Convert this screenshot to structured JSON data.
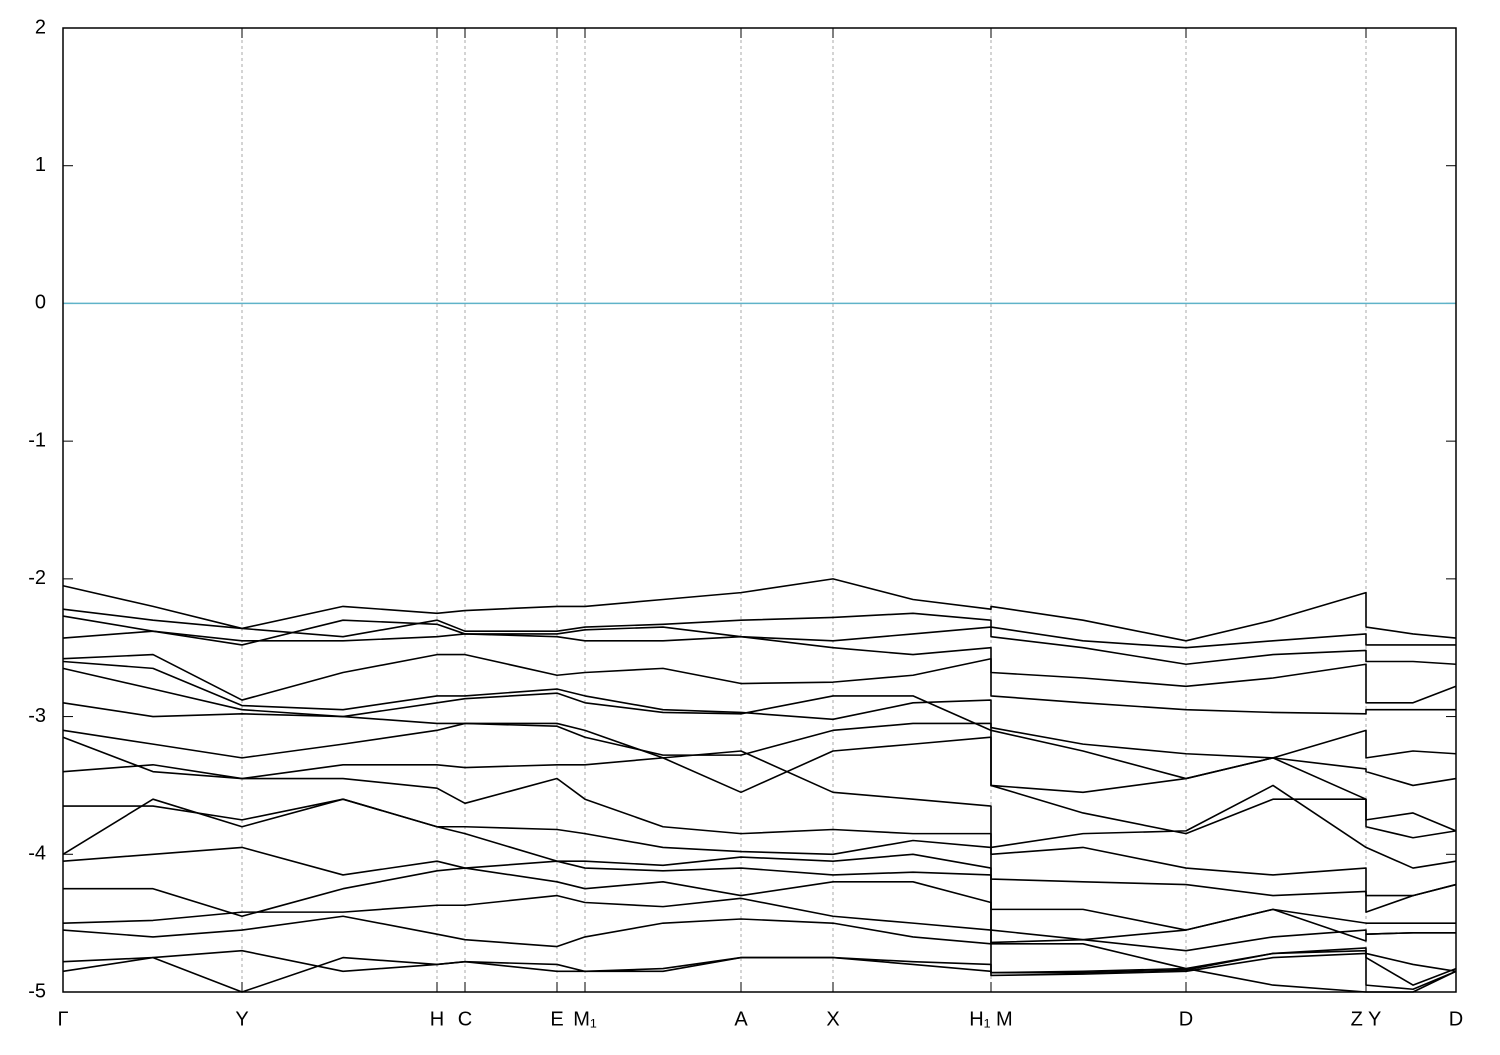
{
  "chart_data": {
    "type": "line",
    "xlim": [
      0,
      13.93
    ],
    "ylim": [
      -5,
      2
    ],
    "yticks": [
      -5,
      -4,
      -3,
      -2,
      -1,
      0,
      1,
      2
    ],
    "xticks": [
      {
        "value": 0,
        "label": "Γ"
      },
      {
        "value": 1.79,
        "label": "Y"
      },
      {
        "value": 3.74,
        "label": "H"
      },
      {
        "value": 4.02,
        "label": "C"
      },
      {
        "value": 4.94,
        "label": "E"
      },
      {
        "value": 5.22,
        "label": "M₁"
      },
      {
        "value": 6.78,
        "label": "A"
      },
      {
        "value": 7.7,
        "label": "X"
      },
      {
        "value": 9.28,
        "label": "H₁ M"
      },
      {
        "value": 11.23,
        "label": "D"
      },
      {
        "value": 13.03,
        "label": "Z Y"
      },
      {
        "value": 13.93,
        "label": "D"
      }
    ],
    "grid": true,
    "line_color": "#000000",
    "zero_line": {
      "value": 0,
      "color": "#5fb3c9"
    },
    "x": [
      0,
      0.9,
      1.79,
      2.8,
      3.74,
      4.02,
      4.94,
      5.22,
      6.0,
      6.78,
      7.7,
      8.5,
      9.28,
      9.28,
      10.2,
      11.23,
      12.1,
      13.03,
      13.03,
      13.5,
      13.93
    ],
    "series": [
      {
        "values": [
          -2.05,
          -2.2,
          -2.36,
          -2.2,
          -2.25,
          -2.23,
          -2.2,
          -2.2,
          -2.15,
          -2.1,
          -2.0,
          -2.15,
          -2.22,
          -2.2,
          -2.3,
          -2.45,
          -2.3,
          -2.1,
          -2.35,
          -2.4,
          -2.43
        ]
      },
      {
        "values": [
          -2.22,
          -2.3,
          -2.36,
          -2.42,
          -2.3,
          -2.38,
          -2.38,
          -2.35,
          -2.33,
          -2.3,
          -2.28,
          -2.25,
          -2.3,
          -2.35,
          -2.45,
          -2.5,
          -2.45,
          -2.4,
          -2.48,
          -2.48,
          -2.48
        ]
      },
      {
        "values": [
          -2.27,
          -2.38,
          -2.48,
          -2.3,
          -2.33,
          -2.4,
          -2.4,
          -2.37,
          -2.35,
          -2.42,
          -2.45,
          -2.4,
          -2.35,
          -2.42,
          -2.5,
          -2.62,
          -2.55,
          -2.52,
          -2.6,
          -2.6,
          -2.62
        ]
      },
      {
        "values": [
          -2.43,
          -2.38,
          -2.45,
          -2.45,
          -2.42,
          -2.4,
          -2.42,
          -2.45,
          -2.45,
          -2.42,
          -2.5,
          -2.55,
          -2.5,
          -2.68,
          -2.72,
          -2.78,
          -2.72,
          -2.62,
          -2.9,
          -2.9,
          -2.78
        ]
      },
      {
        "values": [
          -2.58,
          -2.55,
          -2.88,
          -2.68,
          -2.55,
          -2.55,
          -2.7,
          -2.68,
          -2.65,
          -2.76,
          -2.75,
          -2.7,
          -2.58,
          -2.85,
          -2.9,
          -2.95,
          -2.97,
          -2.98,
          -2.95,
          -2.95,
          -2.95
        ]
      },
      {
        "values": [
          -2.6,
          -2.65,
          -2.92,
          -2.95,
          -2.85,
          -2.85,
          -2.8,
          -2.85,
          -2.95,
          -2.97,
          -3.02,
          -2.9,
          -2.88,
          -3.08,
          -3.2,
          -3.27,
          -3.3,
          -3.1,
          -3.3,
          -3.25,
          -3.27
        ]
      },
      {
        "values": [
          -2.65,
          -2.8,
          -2.95,
          -3.0,
          -2.9,
          -2.87,
          -2.83,
          -2.9,
          -2.97,
          -2.98,
          -2.85,
          -2.85,
          -3.1,
          -3.1,
          -3.25,
          -3.45,
          -3.3,
          -3.38,
          -3.4,
          -3.5,
          -3.45
        ]
      },
      {
        "values": [
          -2.9,
          -3.0,
          -2.98,
          -3.0,
          -3.05,
          -3.05,
          -3.07,
          -3.15,
          -3.28,
          -3.28,
          -3.1,
          -3.05,
          -3.05,
          -3.5,
          -3.55,
          -3.45,
          -3.3,
          -3.6,
          -3.75,
          -3.7,
          -3.83
        ]
      },
      {
        "values": [
          -3.1,
          -3.2,
          -3.3,
          -3.2,
          -3.1,
          -3.05,
          -3.05,
          -3.1,
          -3.3,
          -3.55,
          -3.25,
          -3.2,
          -3.15,
          -3.5,
          -3.7,
          -3.85,
          -3.6,
          -3.6,
          -3.8,
          -3.88,
          -3.83
        ]
      },
      {
        "values": [
          -3.15,
          -3.4,
          -3.45,
          -3.35,
          -3.35,
          -3.37,
          -3.35,
          -3.35,
          -3.3,
          -3.25,
          -3.55,
          -3.6,
          -3.65,
          -3.95,
          -3.85,
          -3.83,
          -3.5,
          -3.95,
          -3.95,
          -4.1,
          -4.05
        ]
      },
      {
        "values": [
          -3.4,
          -3.35,
          -3.45,
          -3.45,
          -3.52,
          -3.63,
          -3.45,
          -3.6,
          -3.8,
          -3.85,
          -3.82,
          -3.85,
          -3.85,
          -4.0,
          -3.95,
          -4.1,
          -4.15,
          -4.1,
          -4.3,
          -4.3,
          -4.22
        ]
      },
      {
        "values": [
          -3.65,
          -3.65,
          -3.75,
          -3.6,
          -3.8,
          -3.8,
          -3.82,
          -3.85,
          -3.95,
          -3.98,
          -4.0,
          -3.9,
          -3.95,
          -4.18,
          -4.2,
          -4.22,
          -4.3,
          -4.27,
          -4.42,
          -4.3,
          -4.22
        ]
      },
      {
        "values": [
          -4.0,
          -3.6,
          -3.8,
          -3.6,
          -3.8,
          -3.85,
          -4.05,
          -4.05,
          -4.08,
          -4.02,
          -4.05,
          -4.0,
          -4.1,
          -4.4,
          -4.4,
          -4.55,
          -4.4,
          -4.63,
          -4.58,
          -4.57,
          -4.57
        ]
      },
      {
        "values": [
          -4.05,
          -4.0,
          -3.95,
          -4.15,
          -4.05,
          -4.1,
          -4.05,
          -4.1,
          -4.12,
          -4.1,
          -4.15,
          -4.13,
          -4.15,
          -4.65,
          -4.65,
          -4.83,
          -4.72,
          -4.68,
          -4.75,
          -4.95,
          -4.83
        ]
      },
      {
        "values": [
          -4.25,
          -4.25,
          -4.45,
          -4.25,
          -4.12,
          -4.1,
          -4.2,
          -4.25,
          -4.2,
          -4.3,
          -4.2,
          -4.2,
          -4.35,
          -4.86,
          -4.85,
          -4.83,
          -4.95,
          -5.0,
          -5.0,
          -5.0,
          -4.85
        ]
      },
      {
        "values": [
          -4.5,
          -4.48,
          -4.42,
          -4.42,
          -4.37,
          -4.37,
          -4.3,
          -4.35,
          -4.38,
          -4.32,
          -4.45,
          -4.5,
          -4.55,
          -4.55,
          -4.62,
          -4.55,
          -4.4,
          -4.5,
          -4.5,
          -4.5,
          -4.5
        ]
      },
      {
        "values": [
          -4.55,
          -4.6,
          -4.55,
          -4.45,
          -4.58,
          -4.62,
          -4.67,
          -4.6,
          -4.5,
          -4.47,
          -4.5,
          -4.6,
          -4.65,
          -4.64,
          -4.62,
          -4.7,
          -4.6,
          -4.55,
          -4.58,
          -4.57,
          -4.57
        ]
      },
      {
        "values": [
          -4.78,
          -4.75,
          -4.7,
          -4.85,
          -4.8,
          -4.78,
          -4.85,
          -4.85,
          -4.83,
          -4.75,
          -4.75,
          -4.78,
          -4.8,
          -4.86,
          -4.86,
          -4.84,
          -4.72,
          -4.7,
          -4.72,
          -4.8,
          -4.85
        ]
      },
      {
        "values": [
          -4.85,
          -4.75,
          -5.0,
          -4.75,
          -4.8,
          -4.78,
          -4.8,
          -4.85,
          -4.85,
          -4.75,
          -4.75,
          -4.8,
          -4.85,
          -4.88,
          -4.87,
          -4.85,
          -4.75,
          -4.72,
          -4.95,
          -4.98,
          -4.85
        ]
      }
    ]
  }
}
